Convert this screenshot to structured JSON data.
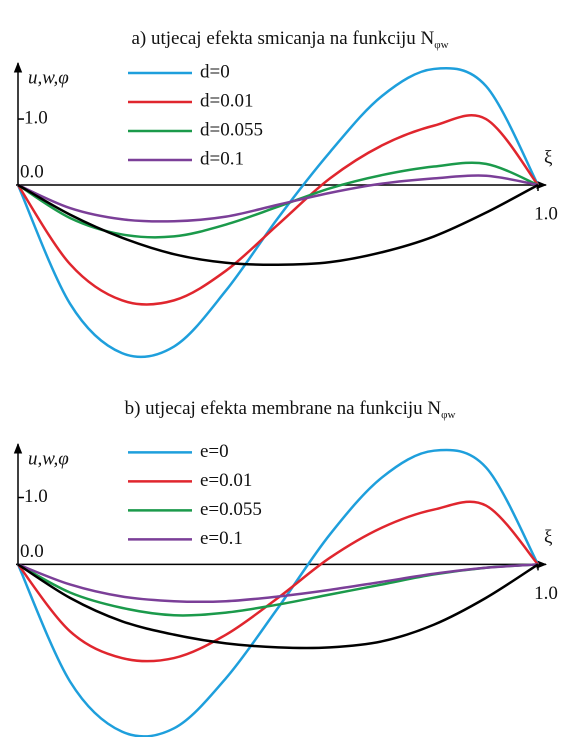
{
  "chart_data": [
    {
      "type": "line",
      "title": "a) utjecaj efekta smicanja na funkciju N",
      "title_subscript": "φw",
      "ylabel": "u,w,φ",
      "xlabel": "ξ",
      "x": [
        0,
        0.1,
        0.2,
        0.3,
        0.4,
        0.5,
        0.6,
        0.7,
        0.8,
        0.9,
        1.0
      ],
      "xlim": [
        0,
        1
      ],
      "ylim": [
        -2.7,
        1.85
      ],
      "xticks": [
        {
          "value": 1,
          "label": "1.0"
        }
      ],
      "yticks": [
        {
          "value": 0,
          "label": "0.0"
        },
        {
          "value": 1,
          "label": "1.0"
        }
      ],
      "series": [
        {
          "name": "d=0",
          "color": "#1e9fdc",
          "values": [
            0,
            -1.8,
            -2.55,
            -2.45,
            -1.6,
            -0.5,
            0.5,
            1.35,
            1.76,
            1.5,
            0
          ]
        },
        {
          "name": "d=0.01",
          "color": "#e0262e",
          "values": [
            0,
            -1.2,
            -1.75,
            -1.75,
            -1.3,
            -0.6,
            0.1,
            0.6,
            0.9,
            1.0,
            0
          ]
        },
        {
          "name": "d=0.055",
          "color": "#1b9a4b",
          "values": [
            0,
            -0.5,
            -0.75,
            -0.78,
            -0.6,
            -0.33,
            -0.05,
            0.15,
            0.28,
            0.32,
            0
          ]
        },
        {
          "name": "d=0.1",
          "color": "#7b3f98",
          "values": [
            0,
            -0.35,
            -0.52,
            -0.55,
            -0.48,
            -0.3,
            -0.12,
            0.02,
            0.1,
            0.14,
            0
          ]
        },
        {
          "color": "#000000",
          "values": [
            0,
            -0.45,
            -0.8,
            -1.05,
            -1.18,
            -1.21,
            -1.17,
            -1.02,
            -0.78,
            -0.42,
            0
          ]
        }
      ]
    },
    {
      "type": "line",
      "title": "b) utjecaj efekta membrane na funkciju N",
      "title_subscript": "φw",
      "ylabel": "u,w,φ",
      "xlabel": "ξ",
      "x": [
        0,
        0.1,
        0.2,
        0.3,
        0.4,
        0.5,
        0.6,
        0.7,
        0.8,
        0.9,
        1.0
      ],
      "xlim": [
        0,
        1
      ],
      "ylim": [
        -2.58,
        1.8
      ],
      "xticks": [
        {
          "value": 1,
          "label": "1.0"
        }
      ],
      "yticks": [
        {
          "value": 0,
          "label": "0.0"
        },
        {
          "value": 1,
          "label": "1.0"
        }
      ],
      "series": [
        {
          "name": "e=0",
          "color": "#1e9fdc",
          "values": [
            0,
            -1.75,
            -2.5,
            -2.45,
            -1.7,
            -0.65,
            0.45,
            1.3,
            1.7,
            1.45,
            0
          ]
        },
        {
          "name": "e=0.01",
          "color": "#e0262e",
          "values": [
            0,
            -1.0,
            -1.4,
            -1.4,
            -1.05,
            -0.5,
            0.1,
            0.55,
            0.82,
            0.88,
            0
          ]
        },
        {
          "name": "e=0.055",
          "color": "#1b9a4b",
          "values": [
            0,
            -0.42,
            -0.65,
            -0.76,
            -0.72,
            -0.6,
            -0.45,
            -0.3,
            -0.15,
            -0.05,
            0
          ]
        },
        {
          "name": "e=0.1",
          "color": "#7b3f98",
          "values": [
            0,
            -0.3,
            -0.48,
            -0.55,
            -0.55,
            -0.48,
            -0.38,
            -0.26,
            -0.14,
            -0.05,
            0
          ]
        },
        {
          "color": "#000000",
          "values": [
            0,
            -0.5,
            -0.85,
            -1.05,
            -1.18,
            -1.24,
            -1.24,
            -1.15,
            -0.9,
            -0.5,
            0
          ]
        }
      ]
    }
  ]
}
